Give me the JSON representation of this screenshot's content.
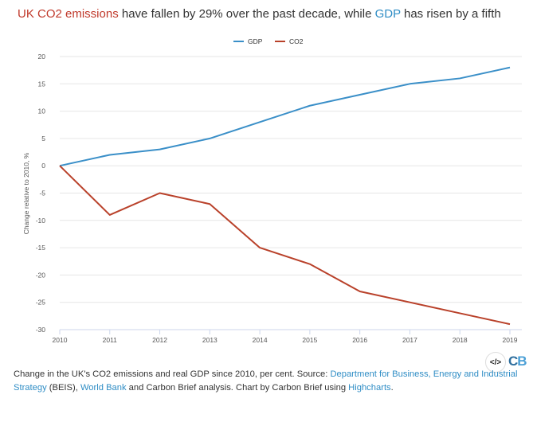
{
  "title": {
    "part1": "UK CO2 emissions",
    "part2": " have fallen by 29% over the past decade, while ",
    "part3": "GDP",
    "part4": " has risen by a fifth"
  },
  "colors": {
    "gdp": "#3a8fc8",
    "co2": "#b9412a",
    "grid": "#e6e6e6"
  },
  "chart_data": {
    "type": "line",
    "title": "UK CO2 emissions have fallen by 29% over the past decade, while GDP has risen by a fifth",
    "xlabel": "",
    "ylabel": "Change relative to 2010, %",
    "x": [
      2010,
      2011,
      2012,
      2013,
      2014,
      2015,
      2016,
      2017,
      2018,
      2019
    ],
    "x_ticks": [
      "2010",
      "2011",
      "2012",
      "2013",
      "2014",
      "2015",
      "2016",
      "2017",
      "2018",
      "2019"
    ],
    "ylim": [
      -30,
      20
    ],
    "y_ticks": [
      "20",
      "15",
      "10",
      "5",
      "0",
      "-5",
      "-10",
      "-15",
      "-20",
      "-25",
      "-30"
    ],
    "grid": true,
    "legend": "top-center",
    "series": [
      {
        "name": "GDP",
        "values": [
          0,
          2,
          3,
          5,
          8,
          11,
          13,
          15,
          16,
          18
        ]
      },
      {
        "name": "CO2",
        "values": [
          0,
          -9,
          -5,
          -7,
          -15,
          -18,
          -23,
          -25,
          -27,
          -29
        ]
      }
    ]
  },
  "icons": {
    "embed": "code-embed-icon",
    "logo": "carbon-brief-logo"
  },
  "embed_label": "</>",
  "logo": {
    "a": "C",
    "b": "B"
  },
  "caption": {
    "t1": "Change in the UK's CO2 emissions and real GDP since 2010, per cent. Source: ",
    "l1": "Department for Business, Energy and Industrial Strategy",
    "t2": " (BEIS), ",
    "l2": "World Bank",
    "t3": " and Carbon Brief analysis. Chart by Carbon Brief using ",
    "l3": "Highcharts",
    "t4": "."
  }
}
